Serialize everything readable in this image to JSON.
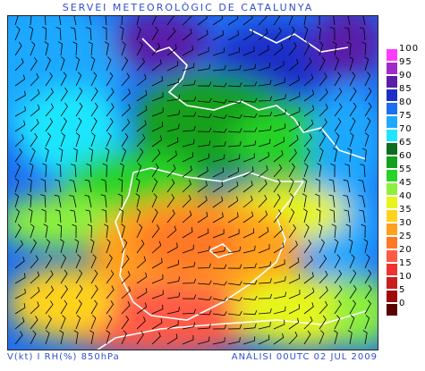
{
  "header": {
    "title": "SERVEI METEOROLÒGIC DE CATALUNYA"
  },
  "footer": {
    "variables": "V(kt) I RH(%) 850hPa",
    "analysis": "ANÀLISI 00UTC 02 JUL 2009"
  },
  "legend": {
    "items": [
      {
        "label": "100",
        "color": "#ff3cff"
      },
      {
        "label": "95",
        "color": "#a12bc8"
      },
      {
        "label": "90",
        "color": "#5a1ea8"
      },
      {
        "label": "85",
        "color": "#1e2fc8"
      },
      {
        "label": "80",
        "color": "#1e6ef0"
      },
      {
        "label": "75",
        "color": "#1ea8ff"
      },
      {
        "label": "70",
        "color": "#1ee6ff"
      },
      {
        "label": "65",
        "color": "#0a6e1e"
      },
      {
        "label": "60",
        "color": "#14a01e"
      },
      {
        "label": "55",
        "color": "#28d228"
      },
      {
        "label": "45",
        "color": "#8cf03c"
      },
      {
        "label": "40",
        "color": "#e6f51e"
      },
      {
        "label": "35",
        "color": "#ffd21e"
      },
      {
        "label": "30",
        "color": "#ffa01e"
      },
      {
        "label": "25",
        "color": "#ff7828"
      },
      {
        "label": "20",
        "color": "#ff5a46"
      },
      {
        "label": "15",
        "color": "#f03232"
      },
      {
        "label": "10",
        "color": "#c81e1e"
      },
      {
        "label": "5",
        "color": "#a00a0a"
      },
      {
        "label": "0",
        "color": "#5a0000"
      }
    ]
  },
  "map": {
    "field": "relative humidity",
    "overlay": "wind barbs",
    "coastline_color": "#ffffff"
  }
}
